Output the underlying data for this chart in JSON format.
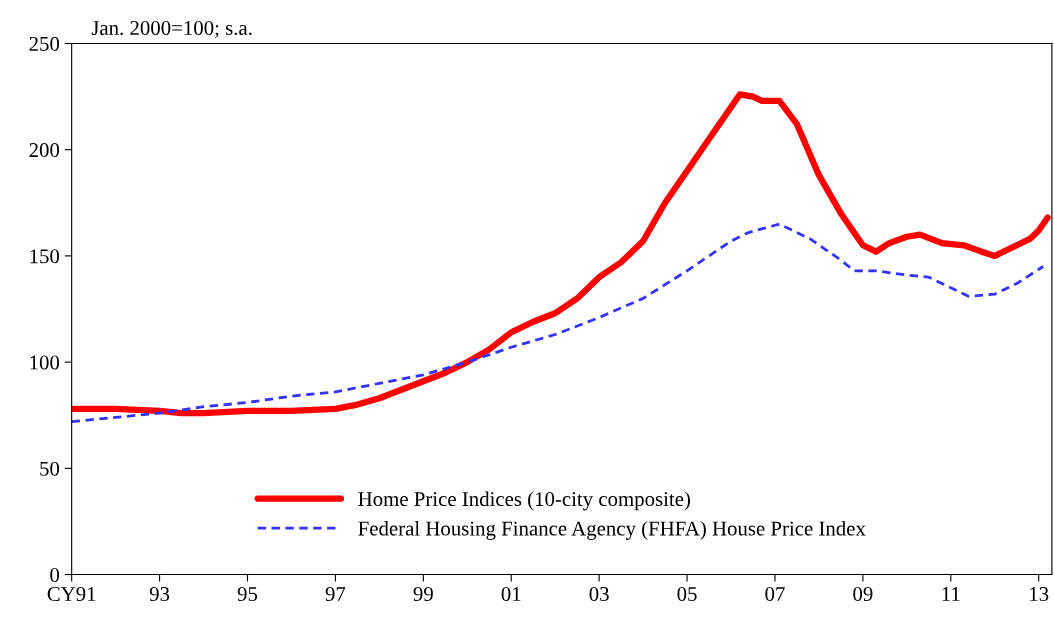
{
  "chart_data": {
    "type": "line",
    "title": "Jan. 2000=100; s.a.",
    "xlim": [
      1991,
      2013.3
    ],
    "ylim": [
      0,
      250
    ],
    "xticks": [
      {
        "value": 1991,
        "label": "CY91"
      },
      {
        "value": 1993,
        "label": "93"
      },
      {
        "value": 1995,
        "label": "95"
      },
      {
        "value": 1997,
        "label": "97"
      },
      {
        "value": 1999,
        "label": "99"
      },
      {
        "value": 2001,
        "label": "01"
      },
      {
        "value": 2003,
        "label": "03"
      },
      {
        "value": 2005,
        "label": "05"
      },
      {
        "value": 2007,
        "label": "07"
      },
      {
        "value": 2009,
        "label": "09"
      },
      {
        "value": 2011,
        "label": "11"
      },
      {
        "value": 2013,
        "label": "13"
      }
    ],
    "yticks": [
      0,
      50,
      100,
      150,
      200,
      250
    ],
    "grid": false,
    "legend": "bottom",
    "marker": "none",
    "series": [
      {
        "name": "Home Price Indices (10-city composite)",
        "color": "#ff0000",
        "line_style": "solid",
        "x": [
          1991,
          1992,
          1993,
          1993.5,
          1994,
          1995,
          1996,
          1997,
          1997.5,
          1998,
          1998.5,
          1999,
          1999.5,
          2000,
          2000.5,
          2001,
          2001.5,
          2002,
          2002.5,
          2003,
          2003.5,
          2004,
          2004.5,
          2005,
          2005.5,
          2006,
          2006.2,
          2006.5,
          2006.7,
          2007.1,
          2007.5,
          2008,
          2008.5,
          2009,
          2009.3,
          2009.6,
          2010,
          2010.3,
          2010.8,
          2011.3,
          2011.7,
          2012,
          2012.3,
          2012.8,
          2013,
          2013.2
        ],
        "values": [
          78,
          78,
          77,
          76,
          76,
          77,
          77,
          78,
          80,
          83,
          87,
          91,
          95,
          100,
          106,
          114,
          119,
          123,
          130,
          140,
          147,
          157,
          175,
          190,
          205,
          220,
          226,
          225,
          223,
          223,
          212,
          188,
          170,
          155,
          152,
          156,
          159,
          160,
          156,
          155,
          152,
          150,
          153,
          158,
          162,
          168
        ]
      },
      {
        "name": "Federal Housing Finance Agency (FHFA) House Price Index",
        "color": "#3333ff",
        "line_style": "dashed",
        "x": [
          1991,
          1992,
          1993,
          1994,
          1995,
          1996,
          1997,
          1998,
          1999,
          2000,
          2001,
          2002,
          2003,
          2004,
          2005,
          2006,
          2006.4,
          2007.1,
          2007.8,
          2008.5,
          2008.8,
          2009.3,
          2010,
          2010.5,
          2011,
          2011.4,
          2012,
          2012.5,
          2013.1
        ],
        "values": [
          72,
          74,
          76,
          79,
          81,
          84,
          86,
          90,
          94,
          100,
          107,
          113,
          121,
          130,
          143,
          157,
          161,
          165,
          158,
          148,
          143,
          143,
          141,
          140,
          135,
          131,
          132,
          137,
          145
        ]
      }
    ]
  }
}
